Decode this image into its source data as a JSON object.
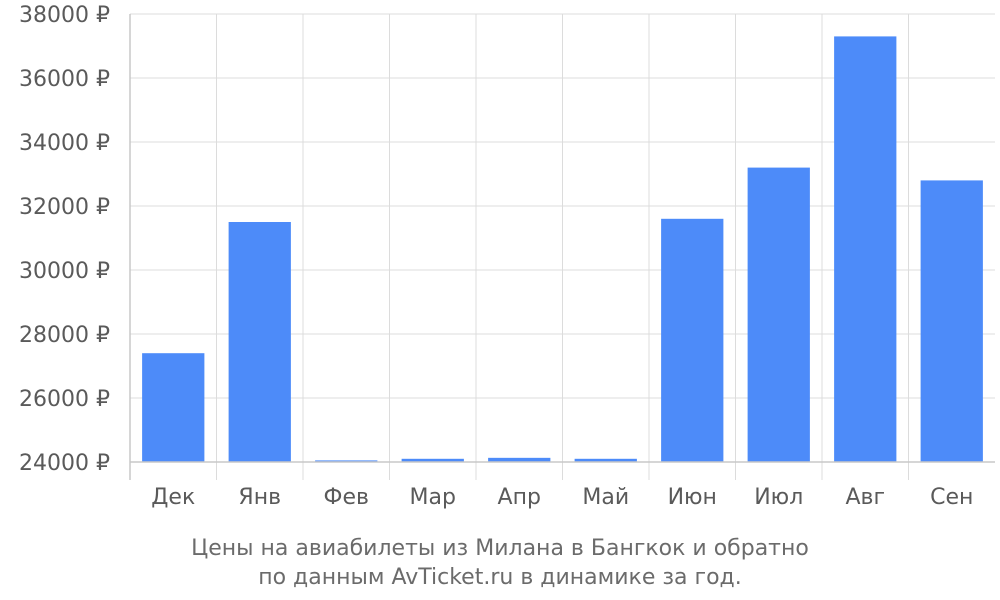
{
  "chart_data": {
    "type": "bar",
    "categories": [
      "Дек",
      "Янв",
      "Фев",
      "Мар",
      "Апр",
      "Май",
      "Июн",
      "Июл",
      "Авг",
      "Сен"
    ],
    "values": [
      27400,
      31500,
      24050,
      24100,
      24130,
      24100,
      31600,
      33200,
      37300,
      32800
    ],
    "ylim": [
      24000,
      38000
    ],
    "yticks": [
      "24000 ₽",
      "26000 ₽",
      "28000 ₽",
      "30000 ₽",
      "32000 ₽",
      "34000 ₽",
      "36000 ₽",
      "38000 ₽"
    ],
    "ytick_values": [
      24000,
      26000,
      28000,
      30000,
      32000,
      34000,
      36000,
      38000
    ],
    "grid": true,
    "bar_color": "#4d8bf9"
  },
  "caption": {
    "line1": "Цены на авиабилеты из Милана в Бангкок и обратно",
    "line2": "по данным AvTicket.ru в динамике за год."
  }
}
